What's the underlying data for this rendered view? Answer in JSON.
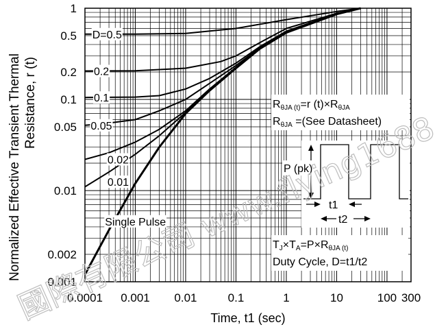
{
  "chart_data": {
    "type": "line",
    "xlabel": "Time, t1 (sec)",
    "ylabel_lines": [
      "Normalized Effective Transient Thermal",
      "Resistance, r (t)"
    ],
    "x_scale": "log",
    "y_scale": "log",
    "xlim": [
      0.0001,
      300
    ],
    "ylim": [
      0.001,
      1
    ],
    "grid": true,
    "x_ticks": [
      {
        "value": 0.0001,
        "label": "0.0001"
      },
      {
        "value": 0.001,
        "label": "0.001"
      },
      {
        "value": 0.01,
        "label": "0.01"
      },
      {
        "value": 0.1,
        "label": "0.1"
      },
      {
        "value": 1,
        "label": "1"
      },
      {
        "value": 10,
        "label": "10"
      },
      {
        "value": 100,
        "label": "100"
      },
      {
        "value": 300,
        "label": "300"
      }
    ],
    "y_ticks": [
      {
        "value": 1,
        "label": "1"
      },
      {
        "value": 0.5,
        "label": "0.5"
      },
      {
        "value": 0.2,
        "label": "0.2"
      },
      {
        "value": 0.1,
        "label": "0.1"
      },
      {
        "value": 0.05,
        "label": "0.05"
      },
      {
        "value": 0.01,
        "label": "0.01"
      },
      {
        "value": 0.002,
        "label": "0.002"
      },
      {
        "value": 0.001,
        "label": "0.001"
      }
    ],
    "series": [
      {
        "name": "D=0.5",
        "label": "D=0.5",
        "label_at": [
          0.00014,
          0.52
        ],
        "x": [
          0.0001,
          0.001,
          0.01,
          0.1,
          1,
          10,
          30
        ],
        "y": [
          0.52,
          0.52,
          0.53,
          0.6,
          0.75,
          0.92,
          1.0
        ]
      },
      {
        "name": "0.2",
        "label": "0.2",
        "label_at": [
          0.00015,
          0.205
        ],
        "x": [
          0.0001,
          0.001,
          0.01,
          0.05,
          0.1,
          0.3,
          1,
          10,
          30
        ],
        "y": [
          0.205,
          0.206,
          0.22,
          0.26,
          0.3,
          0.42,
          0.6,
          0.88,
          1.0
        ]
      },
      {
        "name": "0.1",
        "label": "0.1",
        "label_at": [
          0.00015,
          0.105
        ],
        "x": [
          0.0001,
          0.001,
          0.003,
          0.01,
          0.03,
          0.1,
          0.3,
          1,
          10,
          30
        ],
        "y": [
          0.105,
          0.106,
          0.11,
          0.13,
          0.17,
          0.25,
          0.38,
          0.56,
          0.87,
          1.0
        ]
      },
      {
        "name": "0.05",
        "label": "0.05",
        "label_at": [
          0.00013,
          0.052
        ],
        "x": [
          0.0001,
          0.0003,
          0.001,
          0.003,
          0.01,
          0.03,
          0.1,
          0.3,
          1,
          10,
          30
        ],
        "y": [
          0.052,
          0.055,
          0.06,
          0.075,
          0.1,
          0.15,
          0.235,
          0.37,
          0.55,
          0.86,
          1.0
        ]
      },
      {
        "name": "0.02",
        "label": "0.02",
        "label_at": [
          0.00028,
          0.022
        ],
        "x": [
          0.0001,
          0.0003,
          0.001,
          0.003,
          0.01,
          0.03,
          0.1,
          0.3,
          1,
          10,
          30
        ],
        "y": [
          0.022,
          0.026,
          0.034,
          0.047,
          0.075,
          0.13,
          0.225,
          0.36,
          0.54,
          0.86,
          1.0
        ]
      },
      {
        "name": "0.01",
        "label": "0.01",
        "label_at": [
          0.00028,
          0.0125
        ],
        "x": [
          0.0001,
          0.0003,
          0.001,
          0.003,
          0.01,
          0.03,
          0.1,
          0.3,
          1,
          10,
          30
        ],
        "y": [
          0.011,
          0.016,
          0.025,
          0.04,
          0.072,
          0.128,
          0.222,
          0.36,
          0.54,
          0.86,
          1.0
        ]
      },
      {
        "name": "Single Pulse",
        "label": "Single Pulse",
        "label_at": [
          0.00025,
          0.0046
        ],
        "x": [
          0.0001,
          0.0003,
          0.001,
          0.003,
          0.01,
          0.03,
          0.1,
          0.3,
          1,
          10,
          30
        ],
        "y": [
          0.0012,
          0.0037,
          0.012,
          0.03,
          0.07,
          0.125,
          0.22,
          0.36,
          0.54,
          0.86,
          1.0
        ]
      }
    ],
    "annotations": {
      "formula_1": {
        "r_label": "R",
        "r_sub": "θJA (t)",
        "mid": "=r (t)×R",
        "end_sub": "θJA"
      },
      "formula_2": {
        "r_label": "R",
        "r_sub": "θJA",
        "rest": " =(See Datasheet)"
      },
      "formula_3": {
        "t_label": "T",
        "tj_sub": "J",
        "times": "×T",
        "ta_sub": "A",
        "mid": "=P×R",
        "end_sub": "θJA (t)"
      },
      "duty_cycle": "Duty Cycle, D=t1/t2",
      "ppk": "P (pk)",
      "t1": "t1",
      "t2": "t2"
    },
    "watermark": "國際有限公司 www.flying1688.com"
  }
}
